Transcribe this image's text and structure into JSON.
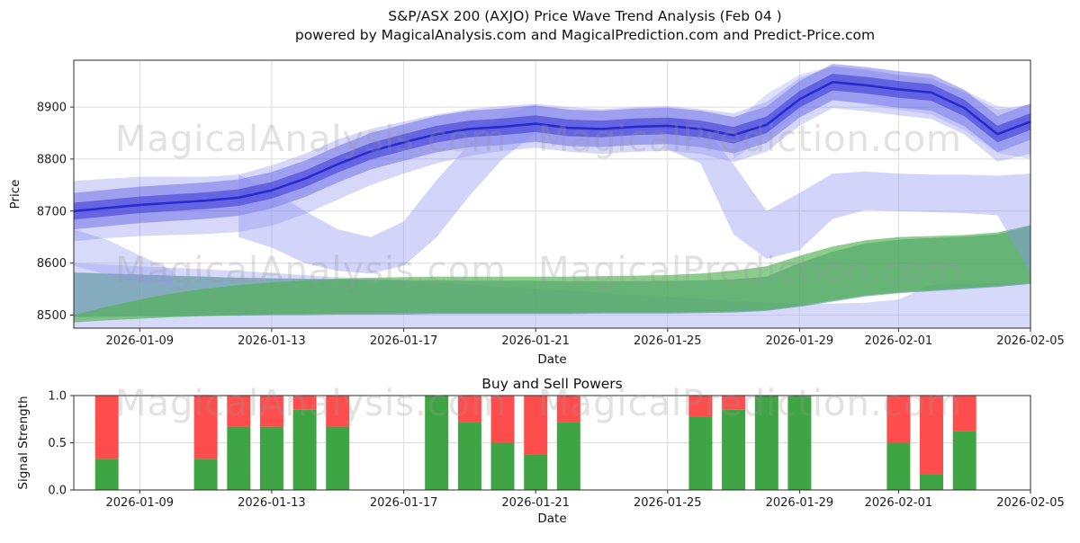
{
  "watermarks": {
    "analysis": "MagicalAnalysis.com",
    "prediction": "MagicalPrediction.com"
  },
  "chart_data": [
    {
      "id": "price-wave-trend",
      "type": "area",
      "title_line1": "S&P/ASX 200 (AXJO) Price Wave Trend Analysis (Feb 04 )",
      "title_line2": "powered by MagicalAnalysis.com and MagicalPrediction.com and Predict-Price.com",
      "xlabel": "Date",
      "ylabel": "Price",
      "ylim": [
        8475,
        8990
      ],
      "grid": true,
      "legend": "none",
      "x_unit": "days since 2026-01-07",
      "x_domain": [
        0,
        29
      ],
      "x_domain_dates": [
        "2026-01-07",
        "2026-02-05"
      ],
      "yticks": [
        {
          "v": 8500,
          "label": "8500"
        },
        {
          "v": 8600,
          "label": "8600"
        },
        {
          "v": 8700,
          "label": "8700"
        },
        {
          "v": 8800,
          "label": "8800"
        },
        {
          "v": 8900,
          "label": "8900"
        }
      ],
      "xticks": [
        {
          "day": 2,
          "label": "2026-01-09"
        },
        {
          "day": 6,
          "label": "2026-01-13"
        },
        {
          "day": 10,
          "label": "2026-01-17"
        },
        {
          "day": 14,
          "label": "2026-01-21"
        },
        {
          "day": 18,
          "label": "2026-01-25"
        },
        {
          "day": 22,
          "label": "2026-01-29"
        },
        {
          "day": 25,
          "label": "2026-02-01"
        },
        {
          "day": 29,
          "label": "2026-02-05"
        }
      ],
      "main_line": {
        "name": "price-trend",
        "color": "#2020cf",
        "opacity": 0.85,
        "values": [
          8700,
          8706,
          8712,
          8716,
          8720,
          8726,
          8740,
          8762,
          8790,
          8815,
          8832,
          8848,
          8858,
          8862,
          8868,
          8860,
          8858,
          8862,
          8864,
          8858,
          8846,
          8866,
          8915,
          8948,
          8942,
          8934,
          8928,
          8898,
          8848,
          8872
        ]
      },
      "bands": [
        {
          "name": "bottom-channel",
          "color": "#b4baf6",
          "opacity": 0.55,
          "upper": [
            8600,
            8597,
            8594,
            8591,
            8588,
            8585,
            8581,
            8577,
            8573,
            8570,
            8567,
            8563,
            8559,
            8555,
            8551,
            8547,
            8543,
            8539,
            8535,
            8531,
            8527,
            8524,
            8522,
            8522,
            8524,
            8530,
            8558,
            8560,
            8561,
            8562
          ],
          "lower": 8458
        },
        {
          "name": "teal-support",
          "color": "#4f8e96",
          "opacity": 0.6,
          "upper": [
            8582,
            8580,
            8578,
            8576,
            8574,
            8572,
            8571,
            8570,
            8569,
            8568,
            8567,
            8567,
            8566,
            8566,
            8566,
            8565,
            8565,
            8565,
            8566,
            8567,
            8569,
            8574,
            8600,
            8622,
            8638,
            8645,
            8648,
            8651,
            8655,
            8672
          ],
          "lower": [
            8496,
            8497,
            8498,
            8498,
            8499,
            8499,
            8500,
            8500,
            8501,
            8501,
            8501,
            8502,
            8502,
            8502,
            8502,
            8502,
            8503,
            8503,
            8503,
            8504,
            8505,
            8508,
            8516,
            8526,
            8536,
            8542,
            8546,
            8550,
            8554,
            8560
          ]
        },
        {
          "name": "green-support",
          "color": "#4fb050",
          "opacity": 0.65,
          "upper": [
            8500,
            8516,
            8530,
            8542,
            8551,
            8558,
            8563,
            8567,
            8570,
            8572,
            8573,
            8574,
            8574,
            8574,
            8574,
            8574,
            8575,
            8576,
            8577,
            8580,
            8585,
            8594,
            8614,
            8632,
            8644,
            8650,
            8652,
            8654,
            8659,
            8673
          ],
          "lower": [
            8486,
            8490,
            8493,
            8496,
            8498,
            8500,
            8501,
            8502,
            8503,
            8503,
            8504,
            8504,
            8504,
            8504,
            8504,
            8504,
            8505,
            8505,
            8505,
            8506,
            8507,
            8510,
            8518,
            8528,
            8538,
            8544,
            8548,
            8552,
            8556,
            8562
          ]
        },
        {
          "name": "left-tail",
          "color": "#8f94f2",
          "opacity": 0.35,
          "days": [
            0,
            1,
            2,
            3
          ],
          "upper": [
            8665,
            8645,
            8615,
            8585
          ],
          "lower": [
            8595,
            8578,
            8562,
            8556
          ]
        },
        {
          "name": "wave-outer",
          "color": "#6e6eea",
          "opacity": 0.28,
          "upper": [
            8758,
            8762,
            8766,
            8766,
            8766,
            8770,
            8788,
            8810,
            8838,
            8858,
            8872,
            8886,
            8896,
            8902,
            8906,
            8900,
            8896,
            8900,
            8902,
            8896,
            8888,
            8910,
            8956,
            8978,
            8972,
            8962,
            8955,
            8928,
            8895,
            8905
          ],
          "lower": [
            8642,
            8648,
            8652,
            8654,
            8656,
            8660,
            8672,
            8694,
            8722,
            8750,
            8772,
            8792,
            8806,
            8816,
            8822,
            8814,
            8810,
            8814,
            8816,
            8810,
            8794,
            8814,
            8864,
            8898,
            8892,
            8884,
            8877,
            8847,
            8795,
            8810
          ]
        },
        {
          "name": "wave-mid",
          "color": "#4a4ae0",
          "opacity": 0.4,
          "upper": [
            8735,
            8741,
            8747,
            8751,
            8755,
            8761,
            8775,
            8797,
            8825,
            8850,
            8867,
            8883,
            8893,
            8897,
            8903,
            8895,
            8893,
            8897,
            8899,
            8893,
            8881,
            8901,
            8950,
            8983,
            8977,
            8969,
            8963,
            8933,
            8883,
            8907
          ],
          "lower": [
            8665,
            8671,
            8677,
            8681,
            8685,
            8691,
            8705,
            8727,
            8755,
            8780,
            8797,
            8813,
            8823,
            8827,
            8833,
            8825,
            8823,
            8827,
            8829,
            8823,
            8811,
            8831,
            8880,
            8913,
            8907,
            8899,
            8893,
            8863,
            8813,
            8837
          ]
        },
        {
          "name": "dip-wave",
          "color": "#8f94f2",
          "opacity": 0.4,
          "days": [
            5,
            6,
            7,
            8,
            9,
            10,
            11,
            12,
            13,
            14
          ],
          "upper": [
            8770,
            8740,
            8700,
            8665,
            8650,
            8680,
            8760,
            8830,
            8885,
            8905
          ],
          "lower": [
            8650,
            8630,
            8600,
            8585,
            8580,
            8595,
            8650,
            8730,
            8800,
            8850
          ]
        },
        {
          "name": "drop-wave",
          "color": "#8f94f2",
          "opacity": 0.4,
          "days": [
            18,
            19,
            20,
            21,
            22,
            23,
            24,
            25,
            26,
            27,
            28,
            29
          ],
          "upper": [
            8880,
            8868,
            8790,
            8700,
            8735,
            8772,
            8776,
            8772,
            8770,
            8770,
            8768,
            8772
          ],
          "lower": [
            8818,
            8792,
            8655,
            8608,
            8625,
            8685,
            8702,
            8700,
            8698,
            8696,
            8692,
            8580
          ]
        },
        {
          "name": "peak-halo",
          "color": "#8f94f2",
          "opacity": 0.3,
          "days": [
            20,
            21,
            22,
            23,
            24,
            25,
            26,
            27,
            28,
            29
          ],
          "upper": [
            8870,
            8925,
            8962,
            8978,
            8970,
            8958,
            8950,
            8932,
            8902,
            8892
          ],
          "lower": [
            8800,
            8845,
            8888,
            8915,
            8905,
            8895,
            8885,
            8855,
            8812,
            8800
          ]
        },
        {
          "name": "wave-inner",
          "color": "#3434d6",
          "opacity": 0.55,
          "upper": [
            8716,
            8722,
            8728,
            8732,
            8736,
            8742,
            8756,
            8778,
            8806,
            8831,
            8848,
            8864,
            8874,
            8878,
            8884,
            8876,
            8874,
            8878,
            8880,
            8874,
            8862,
            8882,
            8931,
            8964,
            8958,
            8950,
            8944,
            8914,
            8864,
            8888
          ],
          "lower": [
            8684,
            8690,
            8696,
            8700,
            8704,
            8710,
            8724,
            8746,
            8774,
            8799,
            8816,
            8832,
            8842,
            8846,
            8852,
            8844,
            8842,
            8846,
            8848,
            8842,
            8830,
            8850,
            8899,
            8932,
            8926,
            8918,
            8912,
            8882,
            8832,
            8856
          ]
        }
      ]
    },
    {
      "id": "buy-sell-powers",
      "type": "bar",
      "stacked": true,
      "title": "Buy and Sell Powers",
      "xlabel": "Date",
      "ylabel": "Signal Strength",
      "ylim": [
        0,
        1
      ],
      "grid": true,
      "colors": {
        "buy": "#3fa544",
        "sell": "#ff4d4d"
      },
      "yticks": [
        {
          "v": 0.0,
          "label": "0.0"
        },
        {
          "v": 0.5,
          "label": "0.5"
        },
        {
          "v": 1.0,
          "label": "1.0"
        }
      ],
      "xticks": [
        {
          "day": 2,
          "label": "2026-01-09"
        },
        {
          "day": 6,
          "label": "2026-01-13"
        },
        {
          "day": 10,
          "label": "2026-01-17"
        },
        {
          "day": 14,
          "label": "2026-01-21"
        },
        {
          "day": 18,
          "label": "2026-01-25"
        },
        {
          "day": 22,
          "label": "2026-01-29"
        },
        {
          "day": 25,
          "label": "2026-02-01"
        },
        {
          "day": 29,
          "label": "2026-02-05"
        }
      ],
      "bars": [
        {
          "date": "2026-01-08",
          "day": 1,
          "buy": 0.33,
          "sell": 0.67
        },
        {
          "date": "2026-01-11",
          "day": 4,
          "buy": 0.33,
          "sell": 0.67
        },
        {
          "date": "2026-01-12",
          "day": 5,
          "buy": 0.67,
          "sell": 0.33
        },
        {
          "date": "2026-01-13",
          "day": 6,
          "buy": 0.67,
          "sell": 0.33
        },
        {
          "date": "2026-01-14",
          "day": 7,
          "buy": 0.85,
          "sell": 0.15
        },
        {
          "date": "2026-01-15",
          "day": 8,
          "buy": 0.67,
          "sell": 0.33
        },
        {
          "date": "2026-01-18",
          "day": 11,
          "buy": 1.0,
          "sell": 0.0
        },
        {
          "date": "2026-01-19",
          "day": 12,
          "buy": 0.72,
          "sell": 0.28
        },
        {
          "date": "2026-01-20",
          "day": 13,
          "buy": 0.5,
          "sell": 0.5
        },
        {
          "date": "2026-01-21",
          "day": 14,
          "buy": 0.38,
          "sell": 0.62
        },
        {
          "date": "2026-01-22",
          "day": 15,
          "buy": 0.72,
          "sell": 0.28
        },
        {
          "date": "2026-01-26",
          "day": 19,
          "buy": 0.78,
          "sell": 0.22
        },
        {
          "date": "2026-01-27",
          "day": 20,
          "buy": 0.85,
          "sell": 0.15
        },
        {
          "date": "2026-01-28",
          "day": 21,
          "buy": 1.0,
          "sell": 0.0
        },
        {
          "date": "2026-01-29",
          "day": 22,
          "buy": 1.0,
          "sell": 0.0
        },
        {
          "date": "2026-02-01",
          "day": 25,
          "buy": 0.5,
          "sell": 0.5
        },
        {
          "date": "2026-02-02",
          "day": 26,
          "buy": 0.17,
          "sell": 0.83
        },
        {
          "date": "2026-02-03",
          "day": 27,
          "buy": 0.62,
          "sell": 0.38
        }
      ]
    }
  ]
}
